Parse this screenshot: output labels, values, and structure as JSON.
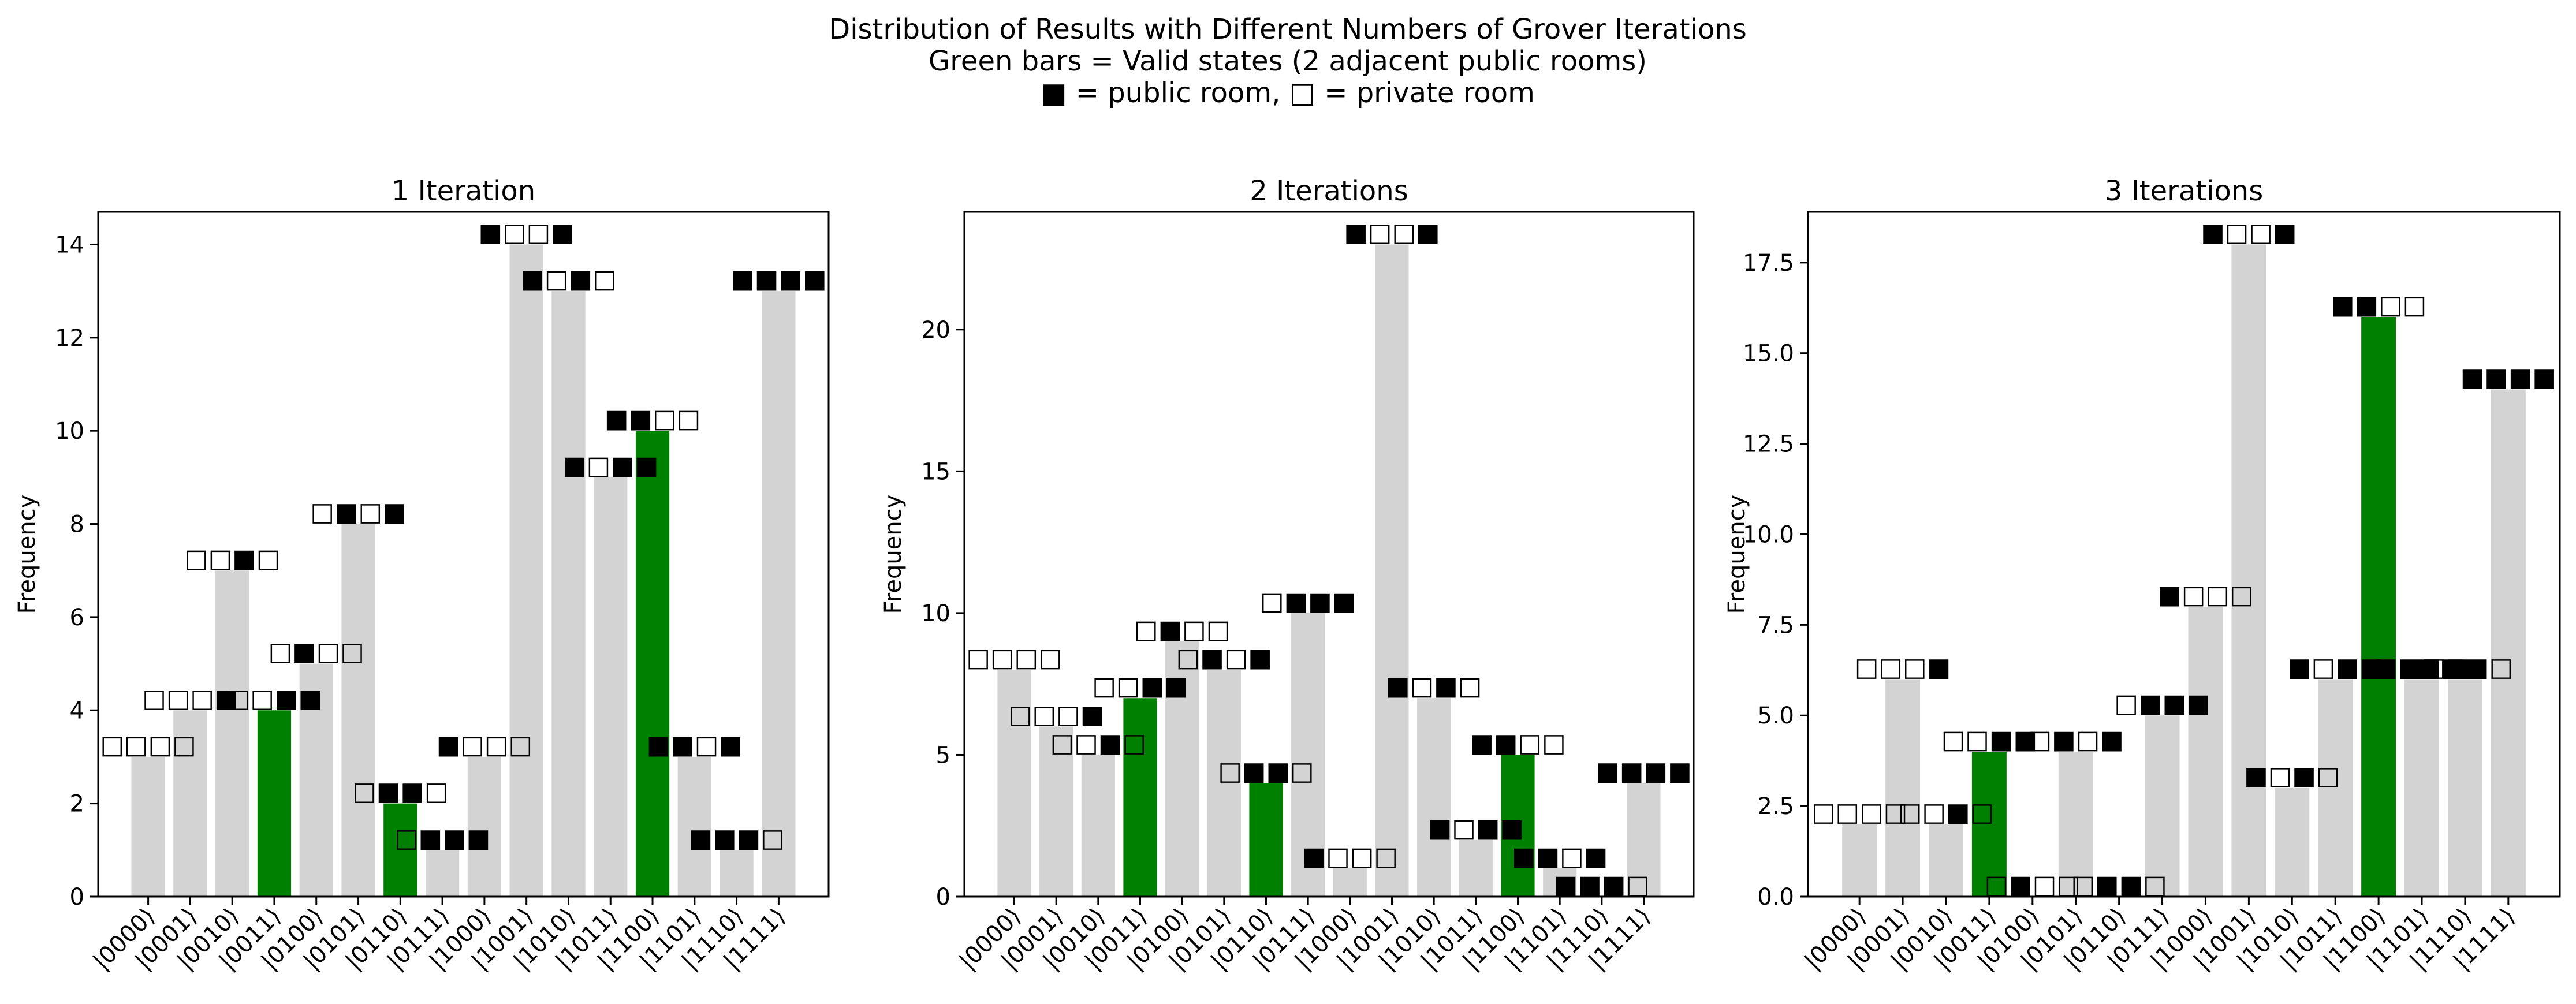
{
  "figure": {
    "title_lines": [
      "Distribution of Results with Different Numbers of Grover Iterations",
      "Green bars = Valid states (2 adjacent public rooms)",
      "■ = public room, □ = private room"
    ]
  },
  "colors": {
    "valid": "#008000",
    "invalid": "#d3d3d3",
    "axes": "#000000"
  },
  "chart_data": [
    {
      "type": "bar",
      "title": "1 Iteration",
      "xlabel": "",
      "ylabel": "Frequency",
      "ylim": [
        0,
        14.7
      ],
      "yticks": [
        0,
        2,
        4,
        6,
        8,
        10,
        12,
        14
      ],
      "ytick_labels": [
        "0",
        "2",
        "4",
        "6",
        "8",
        "10",
        "12",
        "14"
      ],
      "categories": [
        "|0000⟩",
        "|0001⟩",
        "|0010⟩",
        "|0011⟩",
        "|0100⟩",
        "|0101⟩",
        "|0110⟩",
        "|0111⟩",
        "|1000⟩",
        "|1001⟩",
        "|1010⟩",
        "|1011⟩",
        "|1100⟩",
        "|1101⟩",
        "|1110⟩",
        "|1111⟩"
      ],
      "values": [
        3,
        4,
        7,
        4,
        5,
        8,
        2,
        1,
        3,
        14,
        13,
        9,
        10,
        3,
        1,
        13
      ],
      "valid": [
        false,
        false,
        false,
        true,
        false,
        false,
        true,
        false,
        false,
        false,
        false,
        false,
        true,
        false,
        false,
        false
      ],
      "bar_labels": [
        "□□□□",
        "□□□■",
        "□□■□",
        "□□■■",
        "□■□□",
        "□■□■",
        "□■■□",
        "□■■■",
        "■□□□",
        "■□□■",
        "■□■□",
        "■□■■",
        "■■□□",
        "■■□■",
        "■■■□",
        "■■■■"
      ]
    },
    {
      "type": "bar",
      "title": "2 Iterations",
      "xlabel": "",
      "ylabel": "Frequency",
      "ylim": [
        0,
        24.15
      ],
      "yticks": [
        0,
        5,
        10,
        15,
        20
      ],
      "ytick_labels": [
        "0",
        "5",
        "10",
        "15",
        "20"
      ],
      "categories": [
        "|0000⟩",
        "|0001⟩",
        "|0010⟩",
        "|0011⟩",
        "|0100⟩",
        "|0101⟩",
        "|0110⟩",
        "|0111⟩",
        "|1000⟩",
        "|1001⟩",
        "|1010⟩",
        "|1011⟩",
        "|1100⟩",
        "|1101⟩",
        "|1110⟩",
        "|1111⟩"
      ],
      "values": [
        8,
        6,
        5,
        7,
        9,
        8,
        4,
        10,
        1,
        23,
        7,
        2,
        5,
        1,
        0,
        4
      ],
      "valid": [
        false,
        false,
        false,
        true,
        false,
        false,
        true,
        false,
        false,
        false,
        false,
        false,
        true,
        false,
        false,
        false
      ],
      "bar_labels": [
        "□□□□",
        "□□□■",
        "□□■□",
        "□□■■",
        "□■□□",
        "□■□■",
        "□■■□",
        "□■■■",
        "■□□□",
        "■□□■",
        "■□■□",
        "■□■■",
        "■■□□",
        "■■□■",
        "■■■□",
        "■■■■"
      ]
    },
    {
      "type": "bar",
      "title": "3 Iterations",
      "xlabel": "",
      "ylabel": "Frequency",
      "ylim": [
        0,
        18.9
      ],
      "yticks": [
        0,
        2.5,
        5,
        7.5,
        10,
        12.5,
        15,
        17.5
      ],
      "ytick_labels": [
        "0.0",
        "2.5",
        "5.0",
        "7.5",
        "10.0",
        "12.5",
        "15.0",
        "17.5"
      ],
      "categories": [
        "|0000⟩",
        "|0001⟩",
        "|0010⟩",
        "|0011⟩",
        "|0100⟩",
        "|0101⟩",
        "|0110⟩",
        "|0111⟩",
        "|1000⟩",
        "|1001⟩",
        "|1010⟩",
        "|1011⟩",
        "|1100⟩",
        "|1101⟩",
        "|1110⟩",
        "|1111⟩"
      ],
      "values": [
        2,
        6,
        2,
        4,
        0,
        4,
        0,
        5,
        8,
        18,
        3,
        6,
        16,
        6,
        6,
        14
      ],
      "valid": [
        false,
        false,
        false,
        true,
        false,
        false,
        true,
        false,
        false,
        false,
        false,
        false,
        true,
        false,
        false,
        false
      ],
      "bar_labels": [
        "□□□□",
        "□□□■",
        "□□■□",
        "□□■■",
        "□■□□",
        "□■□■",
        "□■■□",
        "□■■■",
        "■□□□",
        "■□□■",
        "■□■□",
        "■□■■",
        "■■□□",
        "■■□■",
        "■■■□",
        "■■■■"
      ]
    }
  ]
}
